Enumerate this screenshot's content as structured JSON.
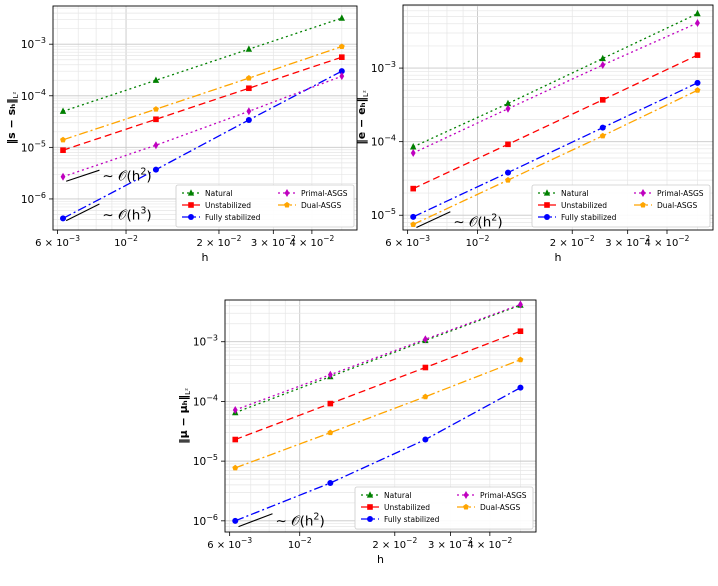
{
  "chart_data": [
    {
      "type": "line",
      "xscale": "log",
      "yscale": "log",
      "xlim": [
        0.0058,
        0.056
      ],
      "ylim": [
        2.5e-07,
        0.0055
      ],
      "xlabel": "h",
      "ylabel": "‖s − sₕ‖",
      "ylabel_sub": "L²",
      "x": [
        0.00625,
        0.0125,
        0.025,
        0.05
      ],
      "series": [
        {
          "name": "Natural",
          "color": "#008000",
          "marker": "triangle",
          "dash": "2,3",
          "values": [
            5e-05,
            0.0002,
            0.0008,
            0.0032
          ]
        },
        {
          "name": "Unstabilized",
          "color": "#ff0000",
          "marker": "square",
          "dash": "7,4",
          "values": [
            8.8e-06,
            3.5e-05,
            0.00014,
            0.00056
          ]
        },
        {
          "name": "Fully stabilized",
          "color": "#0000ff",
          "marker": "circle",
          "dash": "9,3,2,3",
          "values": [
            4.2e-07,
            3.7e-06,
            3.4e-05,
            0.0003
          ]
        },
        {
          "name": "Primal-ASGS",
          "color": "#bf00bf",
          "marker": "diamond",
          "dash": "2,3",
          "values": [
            2.7e-06,
            1.1e-05,
            5e-05,
            0.00024
          ]
        },
        {
          "name": "Dual-ASGS",
          "color": "#ffa500",
          "marker": "pentagon",
          "dash": "9,3,2,3",
          "values": [
            1.4e-05,
            5.5e-05,
            0.00022,
            0.0009
          ]
        }
      ],
      "legend_cols": [
        [
          "Natural",
          "Unstabilized",
          "Fully stabilized"
        ],
        [
          "Primal-ASGS",
          "Dual-ASGS"
        ]
      ],
      "legend_location": "lower-right",
      "y_ticks": [
        {
          "v": 1e-06,
          "base": "10",
          "exp": "−6"
        },
        {
          "v": 1e-05,
          "base": "10",
          "exp": "−5"
        },
        {
          "v": 0.0001,
          "base": "10",
          "exp": "−4"
        },
        {
          "v": 0.001,
          "base": "10",
          "exp": "−3"
        }
      ],
      "x_ticks": [
        {
          "v": 0.006,
          "mant": "6 × 10",
          "exp": "−3"
        },
        {
          "v": 0.01,
          "mant": "10",
          "exp": "−2"
        },
        {
          "v": 0.02,
          "mant": "2 × 10",
          "exp": "−2"
        },
        {
          "v": 0.03,
          "mant": "3 × 10",
          "exp": "−2"
        },
        {
          "v": 0.04,
          "mant": "4 × 10",
          "exp": "−2"
        }
      ],
      "annotations": [
        {
          "text": "∼ 𝒪(h",
          "sup": "2",
          "close": ")",
          "x": 0.0064,
          "y": 2.2e-06,
          "slope": 2,
          "len": 0.0018
        },
        {
          "text": "∼ 𝒪(h",
          "sup": "3",
          "close": ")",
          "x": 0.0064,
          "y": 3.8e-07,
          "slope": 3,
          "len": 0.0018
        }
      ]
    },
    {
      "type": "line",
      "xscale": "log",
      "yscale": "log",
      "xlim": [
        0.0058,
        0.056
      ],
      "ylim": [
        6.3e-06,
        0.0072
      ],
      "xlabel": "h",
      "ylabel": "‖e − eₕ‖",
      "ylabel_sub": "L²",
      "x": [
        0.00625,
        0.0125,
        0.025,
        0.05
      ],
      "series": [
        {
          "name": "Natural",
          "color": "#008000",
          "marker": "triangle",
          "dash": "2,3",
          "values": [
            8.5e-05,
            0.00033,
            0.00135,
            0.0055
          ]
        },
        {
          "name": "Unstabilized",
          "color": "#ff0000",
          "marker": "square",
          "dash": "7,4",
          "values": [
            2.3e-05,
            9.2e-05,
            0.00037,
            0.0015
          ]
        },
        {
          "name": "Fully stabilized",
          "color": "#0000ff",
          "marker": "circle",
          "dash": "9,3,2,3",
          "values": [
            9.5e-06,
            3.8e-05,
            0.000155,
            0.00063
          ]
        },
        {
          "name": "Primal-ASGS",
          "color": "#bf00bf",
          "marker": "diamond",
          "dash": "2,3",
          "values": [
            7e-05,
            0.00028,
            0.0011,
            0.0041
          ]
        },
        {
          "name": "Dual-ASGS",
          "color": "#ffa500",
          "marker": "pentagon",
          "dash": "9,3,2,3",
          "values": [
            7.5e-06,
            3e-05,
            0.00012,
            0.0005
          ]
        }
      ],
      "legend_cols": [
        [
          "Natural",
          "Unstabilized",
          "Fully stabilized"
        ],
        [
          "Primal-ASGS",
          "Dual-ASGS"
        ]
      ],
      "legend_location": "lower-right",
      "y_ticks": [
        {
          "v": 1e-05,
          "base": "10",
          "exp": "−5"
        },
        {
          "v": 0.0001,
          "base": "10",
          "exp": "−4"
        },
        {
          "v": 0.001,
          "base": "10",
          "exp": "−3"
        }
      ],
      "x_ticks": [
        {
          "v": 0.006,
          "mant": "6 × 10",
          "exp": "−3"
        },
        {
          "v": 0.01,
          "mant": "10",
          "exp": "−2"
        },
        {
          "v": 0.02,
          "mant": "2 × 10",
          "exp": "−2"
        },
        {
          "v": 0.03,
          "mant": "3 × 10",
          "exp": "−2"
        },
        {
          "v": 0.04,
          "mant": "4 × 10",
          "exp": "−2"
        }
      ],
      "annotations": [
        {
          "text": "∼ 𝒪(h",
          "sup": "2",
          "close": ")",
          "x": 0.0064,
          "y": 6.8e-06,
          "slope": 2,
          "len": 0.0018
        }
      ]
    },
    {
      "type": "line",
      "xscale": "log",
      "yscale": "log",
      "xlim": [
        0.0058,
        0.056
      ],
      "ylim": [
        6.5e-07,
        0.005
      ],
      "xlabel": "h",
      "ylabel": "‖μ − μₕ‖",
      "ylabel_sub": "L²",
      "x": [
        0.00625,
        0.0125,
        0.025,
        0.05
      ],
      "series": [
        {
          "name": "Natural",
          "color": "#008000",
          "marker": "triangle",
          "dash": "2,3",
          "values": [
            6.5e-05,
            0.00026,
            0.00105,
            0.0041
          ]
        },
        {
          "name": "Unstabilized",
          "color": "#ff0000",
          "marker": "square",
          "dash": "7,4",
          "values": [
            2.3e-05,
            9.2e-05,
            0.00037,
            0.0015
          ]
        },
        {
          "name": "Fully stabilized",
          "color": "#0000ff",
          "marker": "circle",
          "dash": "9,3,2,3",
          "values": [
            1e-06,
            4.3e-06,
            2.3e-05,
            0.00017
          ]
        },
        {
          "name": "Primal-ASGS",
          "color": "#bf00bf",
          "marker": "diamond",
          "dash": "2,3",
          "values": [
            7.2e-05,
            0.00028,
            0.0011,
            0.0042
          ]
        },
        {
          "name": "Dual-ASGS",
          "color": "#ffa500",
          "marker": "pentagon",
          "dash": "9,3,2,3",
          "values": [
            7.7e-06,
            3e-05,
            0.00012,
            0.0005
          ]
        }
      ],
      "legend_cols": [
        [
          "Natural",
          "Unstabilized",
          "Fully stabilized"
        ],
        [
          "Primal-ASGS",
          "Dual-ASGS"
        ]
      ],
      "legend_location": "lower-right",
      "y_ticks": [
        {
          "v": 1e-06,
          "base": "10",
          "exp": "−6"
        },
        {
          "v": 1e-05,
          "base": "10",
          "exp": "−5"
        },
        {
          "v": 0.0001,
          "base": "10",
          "exp": "−4"
        },
        {
          "v": 0.001,
          "base": "10",
          "exp": "−3"
        }
      ],
      "x_ticks": [
        {
          "v": 0.006,
          "mant": "6 × 10",
          "exp": "−3"
        },
        {
          "v": 0.01,
          "mant": "10",
          "exp": "−2"
        },
        {
          "v": 0.02,
          "mant": "2 × 10",
          "exp": "−2"
        },
        {
          "v": 0.03,
          "mant": "3 × 10",
          "exp": "−2"
        },
        {
          "v": 0.04,
          "mant": "4 × 10",
          "exp": "−2"
        }
      ],
      "annotations": [
        {
          "text": "∼ 𝒪(h",
          "sup": "2",
          "close": ")",
          "x": 0.0064,
          "y": 8e-07,
          "slope": 2,
          "len": 0.0018
        }
      ]
    }
  ]
}
